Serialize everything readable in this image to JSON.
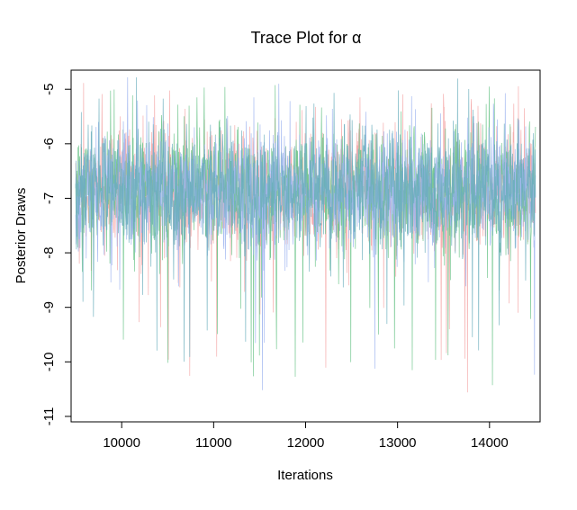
{
  "chart_data": {
    "type": "line",
    "title": "Trace Plot for α",
    "xlabel": "Iterations",
    "ylabel": "Posterior Draws",
    "xlim": [
      9450,
      14550
    ],
    "ylim": [
      -11.1,
      -4.65
    ],
    "x_range": [
      9500,
      14500
    ],
    "x_ticks": [
      10000,
      11000,
      12000,
      13000,
      14000
    ],
    "y_ticks": [
      -11,
      -10,
      -9,
      -8,
      -7,
      -6,
      -5
    ],
    "x_tick_labels": [
      "10000",
      "11000",
      "12000",
      "13000",
      "14000"
    ],
    "y_tick_labels": [
      "-11",
      "-10",
      "-9",
      "-8",
      "-7",
      "-6",
      "-5"
    ],
    "grid": false,
    "legend": "none",
    "series_style": {
      "chains": 4,
      "center": -6.85,
      "typical_min": -8.5,
      "typical_max": -5.5,
      "min": -10.9,
      "max": -4.75
    },
    "series_colors": [
      "#f4a6a6",
      "#6cc48a",
      "#9db4f0",
      "#6aaebd"
    ]
  }
}
